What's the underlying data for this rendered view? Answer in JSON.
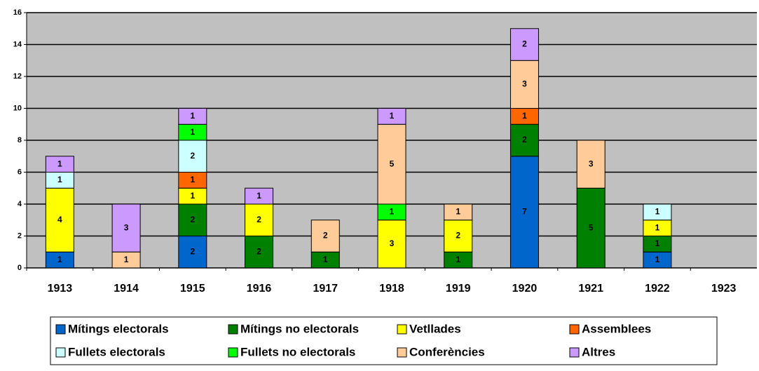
{
  "chart_data": {
    "type": "stacked-bar",
    "categories": [
      "1913",
      "1914",
      "1915",
      "1916",
      "1917",
      "1918",
      "1919",
      "1920",
      "1921",
      "1922",
      "1923"
    ],
    "series": [
      {
        "name": "Mítings electorals",
        "color": "#0066cc",
        "values": [
          1,
          null,
          2,
          null,
          null,
          null,
          null,
          7,
          null,
          1,
          null
        ]
      },
      {
        "name": "Mítings no electorals",
        "color": "#008000",
        "values": [
          null,
          null,
          2,
          2,
          1,
          null,
          1,
          2,
          5,
          1,
          null
        ]
      },
      {
        "name": "Vetllades",
        "color": "#ffff00",
        "values": [
          4,
          null,
          1,
          2,
          null,
          3,
          2,
          null,
          null,
          1,
          null
        ]
      },
      {
        "name": "Assemblees",
        "color": "#ff6600",
        "values": [
          null,
          null,
          1,
          null,
          null,
          null,
          null,
          1,
          null,
          null,
          null
        ]
      },
      {
        "name": "Fullets electorals",
        "color": "#ccffff",
        "values": [
          1,
          null,
          2,
          null,
          null,
          null,
          null,
          null,
          null,
          1,
          null
        ]
      },
      {
        "name": "Fullets no electorals",
        "color": "#00ff00",
        "values": [
          null,
          null,
          1,
          null,
          null,
          1,
          null,
          null,
          null,
          null,
          null
        ]
      },
      {
        "name": "Conferències",
        "color": "#ffcc99",
        "values": [
          null,
          1,
          null,
          null,
          2,
          5,
          1,
          3,
          3,
          null,
          null
        ]
      },
      {
        "name": "Altres",
        "color": "#cc99ff",
        "values": [
          1,
          3,
          1,
          1,
          null,
          1,
          null,
          2,
          null,
          null,
          null
        ]
      }
    ],
    "ylim": [
      0,
      16
    ],
    "yticks": [
      0,
      2,
      4,
      6,
      8,
      10,
      12,
      14,
      16
    ],
    "grid": true,
    "plot_background": "#c0c0c0",
    "legend": "bottom"
  }
}
